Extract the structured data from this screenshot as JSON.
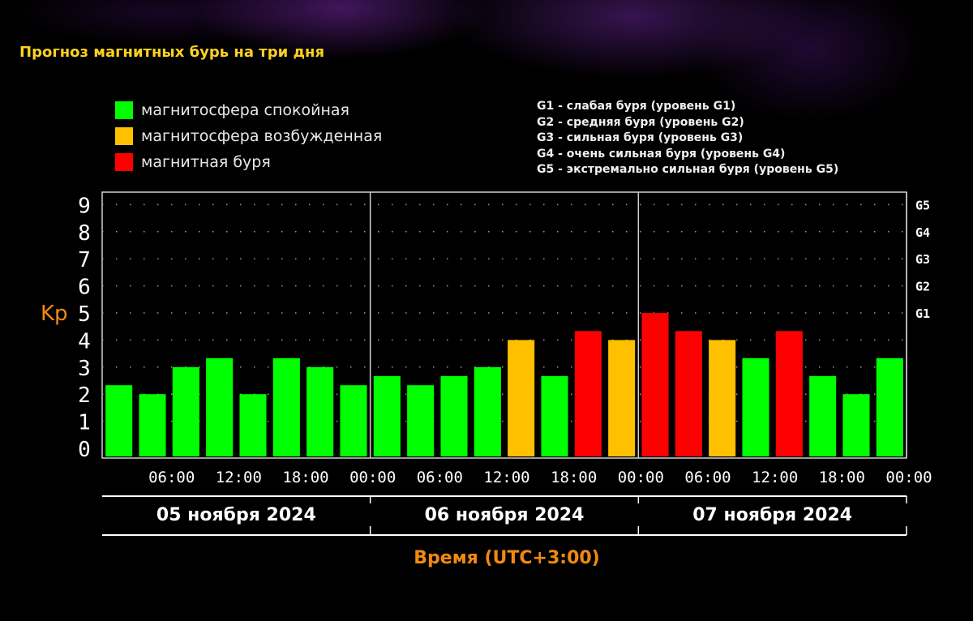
{
  "title": "Прогноз магнитных бурь на три дня",
  "legend": [
    {
      "label": "магнитосфера спокойная",
      "color": "#00ff00"
    },
    {
      "label": "магнитосфера возбужденная",
      "color": "#ffc000"
    },
    {
      "label": "магнитная буря",
      "color": "#ff0000"
    }
  ],
  "storm_levels": [
    "G1 - слабая буря (уровень G1)",
    "G2 - средняя буря (уровень G2)",
    "G3 - сильная буря (уровень G3)",
    "G4 - очень сильная буря (уровень G4)",
    "G5 - экстремально сильная буря (уровень G5)"
  ],
  "chart_data": {
    "type": "bar",
    "ylabel": "Kp",
    "xlabel": "Время (UTC+3:00)",
    "ylim": [
      0,
      9
    ],
    "y_ticks": [
      "0",
      "1",
      "2",
      "3",
      "4",
      "5",
      "6",
      "7",
      "8",
      "9"
    ],
    "right_ticks": [
      {
        "label": "G1",
        "value": 5
      },
      {
        "label": "G2",
        "value": 6
      },
      {
        "label": "G3",
        "value": 7
      },
      {
        "label": "G4",
        "value": 8
      },
      {
        "label": "G5",
        "value": 9
      }
    ],
    "x_tick_labels": [
      "06:00",
      "12:00",
      "18:00",
      "00:00",
      "06:00",
      "12:00",
      "18:00",
      "00:00",
      "06:00",
      "12:00",
      "18:00",
      "00:00"
    ],
    "days": [
      "05 ноября 2024",
      "06 ноября 2024",
      "07 ноября 2024"
    ],
    "colors": {
      "quiet": "#00ff00",
      "active": "#ffc000",
      "storm": "#ff0000"
    },
    "values": [
      2.33,
      2.0,
      3.0,
      3.33,
      2.0,
      3.33,
      3.0,
      2.33,
      2.67,
      2.33,
      2.67,
      3.0,
      4.0,
      2.67,
      4.33,
      4.0,
      5.0,
      4.33,
      4.0,
      3.33,
      4.33,
      2.67,
      2.0,
      3.33
    ],
    "levels": [
      "quiet",
      "quiet",
      "quiet",
      "quiet",
      "quiet",
      "quiet",
      "quiet",
      "quiet",
      "quiet",
      "quiet",
      "quiet",
      "quiet",
      "active",
      "quiet",
      "storm",
      "active",
      "storm",
      "storm",
      "active",
      "quiet",
      "storm",
      "quiet",
      "quiet",
      "quiet"
    ],
    "grid": true
  }
}
